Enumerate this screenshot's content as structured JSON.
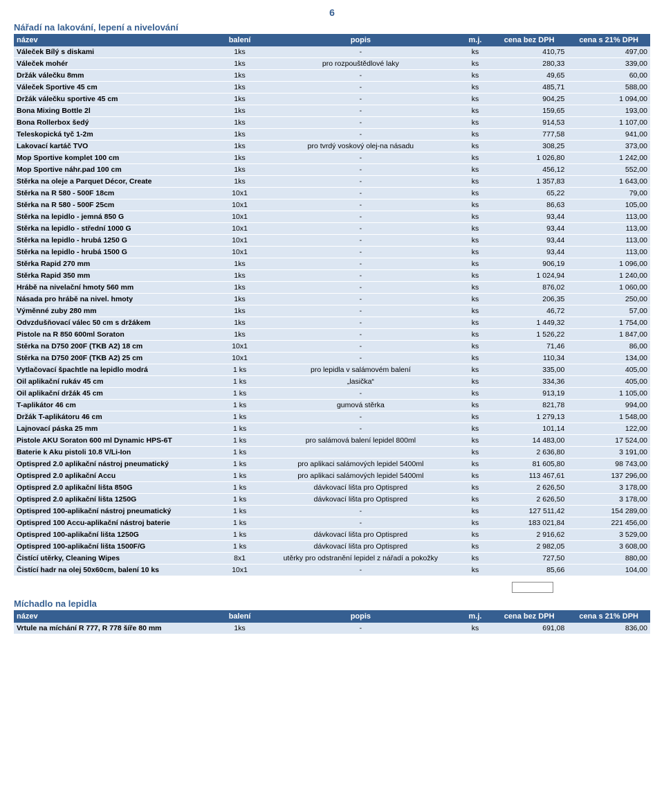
{
  "page_number": "6",
  "section1": {
    "title": "Nářadí na lakování, lepení a nivelování",
    "headers": {
      "name": "název",
      "bal": "balení",
      "pop": "popis",
      "mj": "m.j.",
      "p1": "cena bez DPH",
      "p2": "cena s 21% DPH"
    },
    "rows": [
      {
        "n": "Váleček Bílý s diskami",
        "b": "1ks",
        "p": "-",
        "m": "ks",
        "c1": "410,75",
        "c2": "497,00"
      },
      {
        "n": "Váleček mohér",
        "b": "1ks",
        "p": "pro rozpouštědlové laky",
        "m": "ks",
        "c1": "280,33",
        "c2": "339,00"
      },
      {
        "n": "Držák válečku 8mm",
        "b": "1ks",
        "p": "-",
        "m": "ks",
        "c1": "49,65",
        "c2": "60,00"
      },
      {
        "n": "Váleček Sportive 45 cm",
        "b": "1ks",
        "p": "-",
        "m": "ks",
        "c1": "485,71",
        "c2": "588,00"
      },
      {
        "n": "Držák válečku sportive 45 cm",
        "b": "1ks",
        "p": "-",
        "m": "ks",
        "c1": "904,25",
        "c2": "1 094,00"
      },
      {
        "n": "Bona Mixing Bottle 2l",
        "b": "1ks",
        "p": "-",
        "m": "ks",
        "c1": "159,65",
        "c2": "193,00"
      },
      {
        "n": "Bona Rollerbox šedý",
        "b": "1ks",
        "p": "-",
        "m": "ks",
        "c1": "914,53",
        "c2": "1 107,00"
      },
      {
        "n": "Teleskopická tyč 1-2m",
        "b": "1ks",
        "p": "-",
        "m": "ks",
        "c1": "777,58",
        "c2": "941,00"
      },
      {
        "n": "Lakovací kartáč TVO",
        "b": "1ks",
        "p": "pro tvrdý voskový olej-na násadu",
        "m": "ks",
        "c1": "308,25",
        "c2": "373,00"
      },
      {
        "n": "Mop Sportive komplet 100 cm",
        "b": "1ks",
        "p": "-",
        "m": "ks",
        "c1": "1 026,80",
        "c2": "1 242,00"
      },
      {
        "n": "Mop Sportive náhr.pad 100 cm",
        "b": "1ks",
        "p": "-",
        "m": "ks",
        "c1": "456,12",
        "c2": "552,00"
      },
      {
        "n": "Stěrka na oleje a Parquet Décor, Create",
        "b": "1ks",
        "p": "-",
        "m": "ks",
        "c1": "1 357,83",
        "c2": "1 643,00"
      },
      {
        "n": "Stěrka na R 580 - 500F 18cm",
        "b": "10x1",
        "p": "-",
        "m": "ks",
        "c1": "65,22",
        "c2": "79,00"
      },
      {
        "n": "Stěrka na R 580 - 500F 25cm",
        "b": "10x1",
        "p": "-",
        "m": "ks",
        "c1": "86,63",
        "c2": "105,00"
      },
      {
        "n": "Stěrka na lepidlo - jemná  850 G",
        "b": "10x1",
        "p": "-",
        "m": "ks",
        "c1": "93,44",
        "c2": "113,00"
      },
      {
        "n": "Stěrka na lepidlo - střední 1000 G",
        "b": "10x1",
        "p": "-",
        "m": "ks",
        "c1": "93,44",
        "c2": "113,00"
      },
      {
        "n": "Stěrka na lepidlo - hrubá 1250 G",
        "b": "10x1",
        "p": "-",
        "m": "ks",
        "c1": "93,44",
        "c2": "113,00"
      },
      {
        "n": "Stěrka na lepidlo - hrubá 1500 G",
        "b": "10x1",
        "p": "-",
        "m": "ks",
        "c1": "93,44",
        "c2": "113,00"
      },
      {
        "n": "Stěrka Rapid 270 mm",
        "b": "1ks",
        "p": "-",
        "m": "ks",
        "c1": "906,19",
        "c2": "1 096,00"
      },
      {
        "n": "Stěrka Rapid 350 mm",
        "b": "1ks",
        "p": "-",
        "m": "ks",
        "c1": "1 024,94",
        "c2": "1 240,00"
      },
      {
        "n": "Hrábě na nivelační hmoty 560 mm",
        "b": "1ks",
        "p": "-",
        "m": "ks",
        "c1": "876,02",
        "c2": "1 060,00"
      },
      {
        "n": "Násada pro hrábě na nivel. hmoty",
        "b": "1ks",
        "p": "-",
        "m": "ks",
        "c1": "206,35",
        "c2": "250,00"
      },
      {
        "n": "Výměnné zuby 280 mm",
        "b": "1ks",
        "p": "-",
        "m": "ks",
        "c1": "46,72",
        "c2": "57,00"
      },
      {
        "n": "Odvzdušňovací válec 50 cm s držákem",
        "b": "1ks",
        "p": "-",
        "m": "ks",
        "c1": "1 449,32",
        "c2": "1 754,00"
      },
      {
        "n": "Pistole na R 850 600ml Soraton",
        "b": "1ks",
        "p": "-",
        "m": "ks",
        "c1": "1 526,22",
        "c2": "1 847,00"
      },
      {
        "n": "Stěrka na D750 200F (TKB A2) 18 cm",
        "b": "10x1",
        "p": "-",
        "m": "ks",
        "c1": "71,46",
        "c2": "86,00"
      },
      {
        "n": "Stěrka na D750 200F (TKB A2) 25 cm",
        "b": "10x1",
        "p": "-",
        "m": "ks",
        "c1": "110,34",
        "c2": "134,00"
      },
      {
        "n": "Vytlačovací špachtle na lepidlo modrá",
        "b": "1 ks",
        "p": "pro lepidla v salámovém balení",
        "m": "ks",
        "c1": "335,00",
        "c2": "405,00"
      },
      {
        "n": "Oil aplikační rukáv 45 cm",
        "b": "1 ks",
        "p": "„lasička“",
        "m": "ks",
        "c1": "334,36",
        "c2": "405,00"
      },
      {
        "n": "Oil aplikační držák 45 cm",
        "b": "1 ks",
        "p": "-",
        "m": "ks",
        "c1": "913,19",
        "c2": "1 105,00"
      },
      {
        "n": "T-aplikátor 46 cm",
        "b": "1 ks",
        "p": "gumová stěrka",
        "m": "ks",
        "c1": "821,78",
        "c2": "994,00"
      },
      {
        "n": "Držák T-aplikátoru 46 cm",
        "b": "1 ks",
        "p": "-",
        "m": "ks",
        "c1": "1 279,13",
        "c2": "1 548,00"
      },
      {
        "n": "Lajnovací páska 25 mm",
        "b": "1 ks",
        "p": "-",
        "m": "ks",
        "c1": "101,14",
        "c2": "122,00"
      },
      {
        "n": "Pistole AKU Soraton 600 ml Dynamic HPS-6T",
        "b": "1 ks",
        "p": "pro salámová balení lepidel 800ml",
        "m": "ks",
        "c1": "14 483,00",
        "c2": "17 524,00"
      },
      {
        "n": "Baterie k Aku pistoli 10.8 V/Li-Ion",
        "b": "1 ks",
        "p": "",
        "m": "ks",
        "c1": "2 636,80",
        "c2": "3 191,00"
      },
      {
        "n": "Optispred 2.0 aplikační nástroj pneumatický",
        "b": "1 ks",
        "p": "pro aplikaci salámových lepidel 5400ml",
        "m": "ks",
        "c1": "81 605,80",
        "c2": "98 743,00"
      },
      {
        "n": "Optispred 2.0 aplikační Accu",
        "b": "1 ks",
        "p": "pro aplikaci salámových lepidel 5400ml",
        "m": "ks",
        "c1": "113 467,61",
        "c2": "137 296,00"
      },
      {
        "n": "Optispred 2.0 aplikační lišta 850G",
        "b": "1 ks",
        "p": "dávkovací lišta pro Optispred",
        "m": "ks",
        "c1": "2 626,50",
        "c2": "3 178,00"
      },
      {
        "n": "Optispred 2.0 aplikační lišta 1250G",
        "b": "1 ks",
        "p": "dávkovací lišta pro Optispred",
        "m": "ks",
        "c1": "2 626,50",
        "c2": "3 178,00"
      },
      {
        "n": "Optispred 100-aplikační nástroj pneumatický",
        "b": "1 ks",
        "p": "-",
        "m": "ks",
        "c1": "127 511,42",
        "c2": "154 289,00"
      },
      {
        "n": "Optispred 100 Accu-aplikační nástroj baterie",
        "b": "1 ks",
        "p": "-",
        "m": "ks",
        "c1": "183 021,84",
        "c2": "221 456,00"
      },
      {
        "n": "Optispred 100-aplikační lišta 1250G",
        "b": "1 ks",
        "p": "dávkovací lišta pro Optispred",
        "m": "ks",
        "c1": "2 916,62",
        "c2": "3 529,00"
      },
      {
        "n": "Optispred 100-aplikační lišta 1500F/G",
        "b": "1 ks",
        "p": "dávkovací lišta pro Optispred",
        "m": "ks",
        "c1": "2 982,05",
        "c2": "3 608,00"
      },
      {
        "n": "Čistící utěrky, Cleaning Wipes",
        "b": "8x1",
        "p": "utěrky pro odstranění lepidel z nářadí a pokožky",
        "m": "ks",
        "c1": "727,50",
        "c2": "880,00"
      },
      {
        "n": "Čistící hadr na olej 50x60cm, balení 10 ks",
        "b": "10x1",
        "p": "-",
        "m": "ks",
        "c1": "85,66",
        "c2": "104,00"
      }
    ]
  },
  "section2": {
    "title": "Míchadlo na lepidla",
    "headers": {
      "name": "název",
      "bal": "balení",
      "pop": "popis",
      "mj": "m.j.",
      "p1": "cena bez DPH",
      "p2": "cena s 21% DPH"
    },
    "rows": [
      {
        "n": "Vrtule na míchání R 777, R 778 šíře 80 mm",
        "b": "1ks",
        "p": "-",
        "m": "ks",
        "c1": "691,08",
        "c2": "836,00"
      }
    ]
  }
}
